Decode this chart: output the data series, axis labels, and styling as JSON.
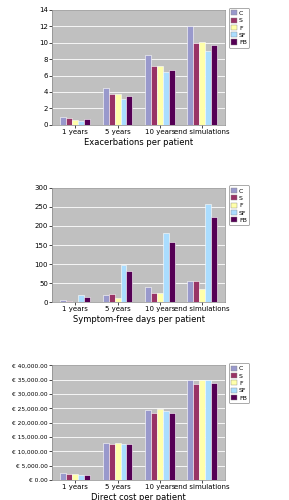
{
  "chart1": {
    "title": "Exacerbations per patient",
    "ylim": [
      0,
      14
    ],
    "yticks": [
      0,
      2,
      4,
      6,
      8,
      10,
      12,
      14
    ],
    "groups": [
      "1 years",
      "5 years",
      "10 years",
      "end simulations"
    ],
    "series": {
      "C": [
        0.9,
        4.5,
        8.5,
        12.1
      ],
      "S": [
        0.8,
        3.7,
        7.2,
        10.0
      ],
      "F": [
        0.6,
        3.8,
        7.2,
        10.1
      ],
      "SF": [
        0.5,
        3.1,
        6.4,
        9.0
      ],
      "FB": [
        0.7,
        3.5,
        6.7,
        9.7
      ]
    }
  },
  "chart2": {
    "title": "Symptom-free days per patient",
    "ylim": [
      0,
      300
    ],
    "yticks": [
      0,
      50,
      100,
      150,
      200,
      250,
      300
    ],
    "groups": [
      "1 years",
      "5 years",
      "10 years",
      "end simulations"
    ],
    "series": {
      "C": [
        5,
        18,
        40,
        55
      ],
      "S": [
        3,
        22,
        25,
        55
      ],
      "F": [
        2,
        10,
        25,
        35
      ],
      "SF": [
        18,
        97,
        182,
        258
      ],
      "FB": [
        13,
        82,
        157,
        222
      ]
    }
  },
  "chart3": {
    "title": "Direct cost per patient",
    "ylim": [
      0,
      40000
    ],
    "yticks": [
      0,
      5000,
      10000,
      15000,
      20000,
      25000,
      30000,
      35000,
      40000
    ],
    "groups": [
      "1 years",
      "5 years",
      "10 years",
      "end simulations"
    ],
    "series": {
      "C": [
        2500,
        13000,
        24500,
        35000
      ],
      "S": [
        2100,
        12500,
        23500,
        33500
      ],
      "F": [
        2000,
        13000,
        24800,
        34800
      ],
      "SF": [
        1800,
        12700,
        24000,
        34800
      ],
      "FB": [
        1900,
        12400,
        23500,
        33800
      ]
    }
  },
  "colors": {
    "C": "#9999CC",
    "S": "#993366",
    "F": "#FFFFAA",
    "SF": "#AADDFF",
    "FB": "#550055"
  },
  "legend_labels": [
    "C",
    "S",
    "F",
    "SF",
    "FB"
  ],
  "plot_bg": "#C0C0C0",
  "fig_bg": "#FFFFFF",
  "border_color": "#AAAAAA"
}
